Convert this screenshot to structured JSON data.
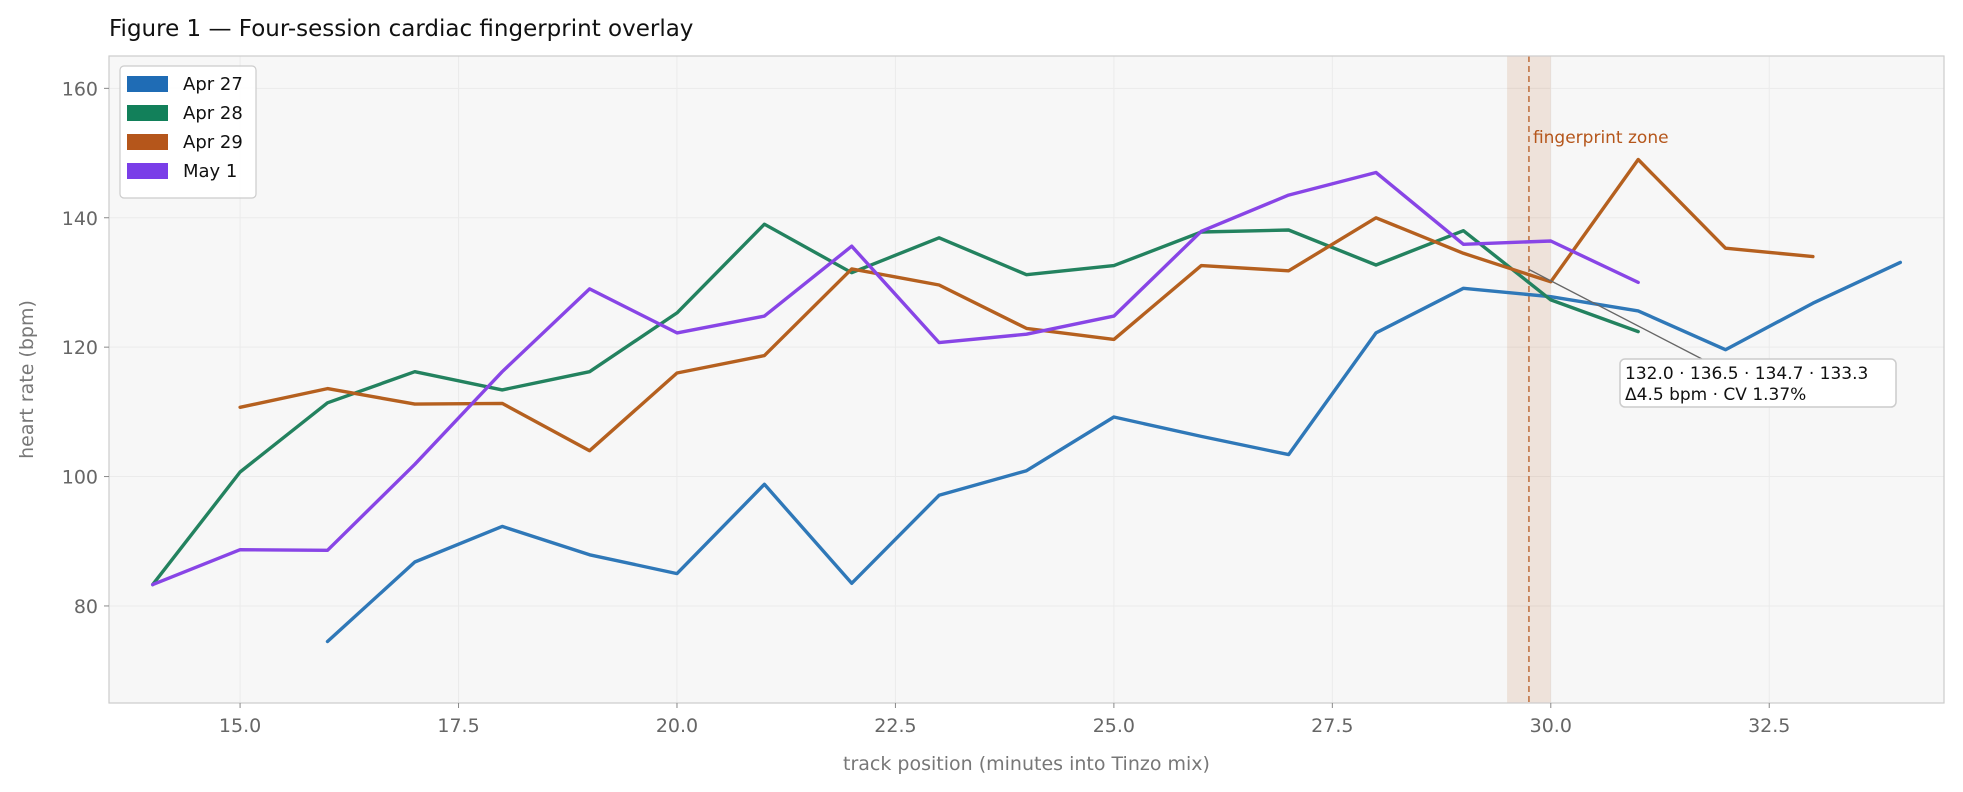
{
  "chart_data": {
    "type": "line",
    "title": "Figure 1 — Four-session cardiac fingerprint overlay",
    "xlabel": "track position (minutes into Tinzo mix)",
    "ylabel": "heart rate (bpm)",
    "xlim": [
      13.5,
      34.5
    ],
    "ylim": [
      65,
      165
    ],
    "xticks": [
      15.0,
      17.5,
      20.0,
      22.5,
      25.0,
      27.5,
      30.0,
      32.5
    ],
    "xtick_labels": [
      "15.0",
      "17.5",
      "20.0",
      "22.5",
      "25.0",
      "27.5",
      "30.0",
      "32.5"
    ],
    "yticks": [
      80,
      100,
      120,
      140,
      160
    ],
    "ytick_labels": [
      "80",
      "100",
      "120",
      "140",
      "160"
    ],
    "grid": true,
    "legend_position": "top-left",
    "series": [
      {
        "name": "Apr 27",
        "color": "#2f78b8",
        "legend_color": "#1f6cb5",
        "x": [
          16,
          17,
          18,
          19,
          20,
          21,
          22,
          23,
          24,
          25,
          26,
          27,
          28,
          29,
          30,
          31,
          32,
          33,
          34
        ],
        "y": [
          74.5,
          86.8,
          92.3,
          87.9,
          85.0,
          98.8,
          83.5,
          97.1,
          100.9,
          109.2,
          106.2,
          103.4,
          122.2,
          129.1,
          127.8,
          125.6,
          119.6,
          126.8,
          133.1
        ]
      },
      {
        "name": "Apr 28",
        "color": "#23825f",
        "legend_color": "#12805a",
        "x": [
          14,
          15,
          16,
          17,
          18,
          19,
          20,
          21,
          22,
          23,
          24,
          25,
          26,
          27,
          28,
          29,
          30,
          31
        ],
        "y": [
          83.3,
          100.7,
          111.4,
          116.2,
          113.4,
          116.2,
          125.3,
          139.0,
          131.5,
          136.9,
          131.2,
          132.6,
          137.8,
          138.1,
          132.7,
          138.0,
          127.3,
          122.4
        ]
      },
      {
        "name": "Apr 29",
        "color": "#b5601f",
        "legend_color": "#b5561b",
        "x": [
          15,
          16,
          17,
          18,
          19,
          20,
          21,
          22,
          23,
          24,
          25,
          26,
          27,
          28,
          29,
          30,
          31,
          32,
          33
        ],
        "y": [
          110.7,
          113.6,
          111.2,
          111.3,
          104.0,
          116.0,
          118.7,
          132.1,
          129.6,
          122.9,
          121.2,
          132.6,
          131.8,
          140.0,
          134.5,
          130.1,
          149.0,
          135.3,
          134.0
        ]
      },
      {
        "name": "May 1",
        "color": "#8845e6",
        "legend_color": "#7a3ee8",
        "x": [
          14,
          15,
          16,
          17,
          18,
          19,
          20,
          21,
          22,
          23,
          24,
          25,
          26,
          27,
          28,
          29,
          30,
          31
        ],
        "y": [
          83.3,
          88.7,
          88.6,
          101.9,
          116.2,
          129.0,
          122.2,
          124.8,
          135.6,
          120.7,
          122.0,
          124.8,
          137.9,
          143.5,
          147.0,
          135.9,
          136.4,
          130.0
        ]
      }
    ],
    "zone": {
      "label": "fingerprint zone",
      "x_start": 29.5,
      "x_end": 30.0,
      "marker_x": 29.75,
      "color": "#b5561b"
    },
    "annotation": {
      "lines": [
        "132.0 · 136.5 · 134.7 · 133.3",
        "Δ4.5 bpm · CV 1.37%"
      ],
      "point_x": 29.75,
      "point_y": 132.0,
      "anchor": "lower-right of zone"
    }
  }
}
